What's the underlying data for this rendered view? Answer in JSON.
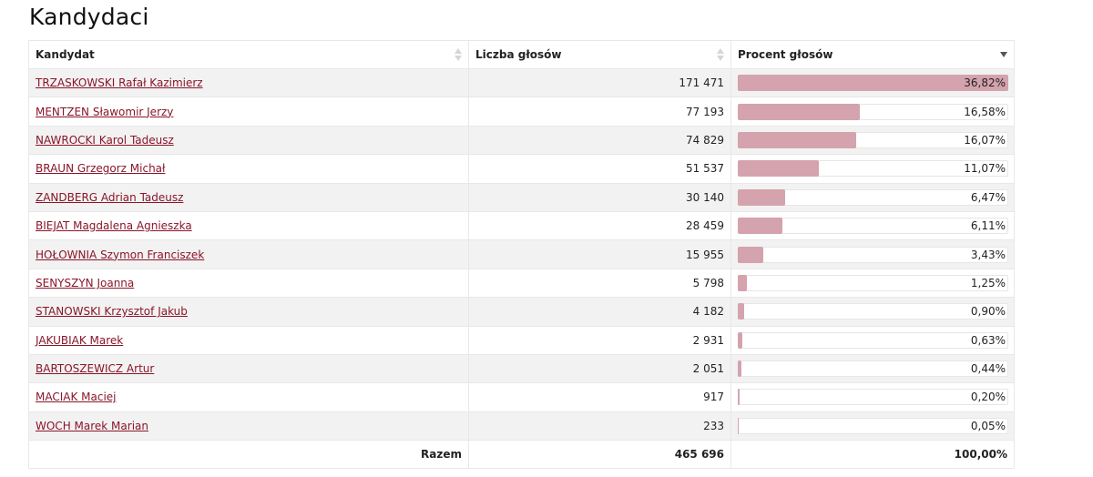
{
  "page": {
    "title": "Kandydaci"
  },
  "colors": {
    "bar": "#d4a3ad",
    "link": "#8a1529"
  },
  "table": {
    "headers": {
      "candidate": "Kandydat",
      "votes": "Liczba głosów",
      "percent": "Procent głosów"
    },
    "sort": {
      "column": "percent",
      "direction": "descending"
    },
    "rows": [
      {
        "name": "TRZASKOWSKI Rafał Kazimierz",
        "votes": "171 471",
        "percent": "36,82%",
        "share": 0.3682
      },
      {
        "name": "MENTZEN Sławomir Jerzy",
        "votes": "77 193",
        "percent": "16,58%",
        "share": 0.1658
      },
      {
        "name": "NAWROCKI Karol Tadeusz",
        "votes": "74 829",
        "percent": "16,07%",
        "share": 0.1607
      },
      {
        "name": "BRAUN Grzegorz Michał",
        "votes": "51 537",
        "percent": "11,07%",
        "share": 0.1107
      },
      {
        "name": "ZANDBERG Adrian Tadeusz",
        "votes": "30 140",
        "percent": "6,47%",
        "share": 0.0647
      },
      {
        "name": "BIEJAT Magdalena Agnieszka",
        "votes": "28 459",
        "percent": "6,11%",
        "share": 0.0611
      },
      {
        "name": "HOŁOWNIA Szymon Franciszek",
        "votes": "15 955",
        "percent": "3,43%",
        "share": 0.0343
      },
      {
        "name": "SENYSZYN Joanna",
        "votes": "5 798",
        "percent": "1,25%",
        "share": 0.0125
      },
      {
        "name": "STANOWSKI Krzysztof Jakub",
        "votes": "4 182",
        "percent": "0,90%",
        "share": 0.009
      },
      {
        "name": "JAKUBIAK Marek",
        "votes": "2 931",
        "percent": "0,63%",
        "share": 0.0063
      },
      {
        "name": "BARTOSZEWICZ Artur",
        "votes": "2 051",
        "percent": "0,44%",
        "share": 0.0044
      },
      {
        "name": "MACIAK Maciej",
        "votes": "917",
        "percent": "0,20%",
        "share": 0.002
      },
      {
        "name": "WOCH Marek Marian",
        "votes": "233",
        "percent": "0,05%",
        "share": 0.0005
      }
    ],
    "total": {
      "label": "Razem",
      "votes": "465 696",
      "percent": "100,00%"
    }
  }
}
